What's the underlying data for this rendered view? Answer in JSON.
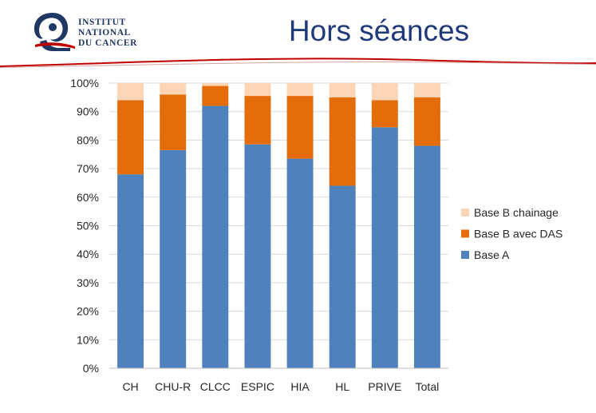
{
  "header": {
    "title": "Hors séances",
    "logo": {
      "line1": "INSTITUT",
      "line2": "NATIONAL",
      "line3": "DU CANCER"
    }
  },
  "colors": {
    "title": "#1f3a78",
    "rule": "#c00000",
    "base_a": "#4f81bd",
    "base_b_das": "#e46c0a",
    "base_b_chainage": "#fbd5b5"
  },
  "chart_data": {
    "type": "bar",
    "stacked": true,
    "categories": [
      "CH",
      "CHU-R",
      "CLCC",
      "ESPIC",
      "HIA",
      "HL",
      "PRIVE",
      "Total"
    ],
    "series": [
      {
        "name": "Base A",
        "color": "#4f81bd",
        "values": [
          68,
          76.5,
          92,
          78.5,
          73.5,
          64,
          84.5,
          78
        ]
      },
      {
        "name": "Base B avec DAS",
        "color": "#e46c0a",
        "values": [
          26,
          19.5,
          7,
          17,
          22,
          31,
          9.5,
          17
        ]
      },
      {
        "name": "Base B chainage",
        "color": "#fbd5b5",
        "values": [
          6,
          4,
          1,
          4.5,
          4.5,
          5,
          6,
          5
        ]
      }
    ],
    "ylim": [
      0,
      100
    ],
    "yticks": [
      "0%",
      "10%",
      "20%",
      "30%",
      "40%",
      "50%",
      "60%",
      "70%",
      "80%",
      "90%",
      "100%"
    ],
    "grid": true,
    "legend": {
      "position": "right",
      "order": [
        "Base B chainage",
        "Base B avec DAS",
        "Base A"
      ]
    },
    "xlabel": "",
    "ylabel": ""
  }
}
